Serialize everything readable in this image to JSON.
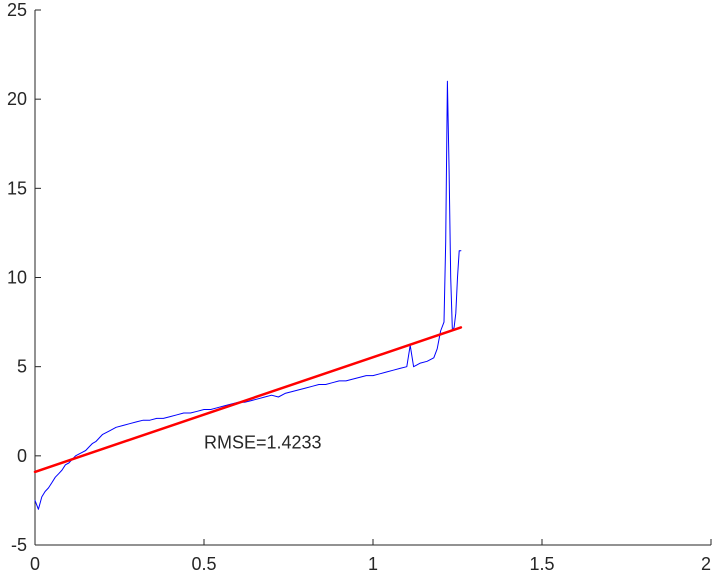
{
  "chart_data": {
    "type": "line",
    "title": "",
    "xlabel": "",
    "ylabel": "",
    "xlim": [
      0,
      2
    ],
    "ylim": [
      -5,
      25
    ],
    "grid": false,
    "xticks": [
      0,
      0.5,
      1,
      1.5,
      2
    ],
    "xtick_labels": [
      "0",
      "0.5",
      "1",
      "1.5",
      "2"
    ],
    "yticks": [
      -5,
      0,
      5,
      10,
      15,
      20,
      25
    ],
    "ytick_labels": [
      "-5",
      "0",
      "5",
      "10",
      "15",
      "20",
      "25"
    ],
    "series": [
      {
        "style": "thin-line",
        "color": "#0000ff",
        "x": [
          0,
          0.01,
          0.02,
          0.03,
          0.04,
          0.05,
          0.06,
          0.07,
          0.08,
          0.09,
          0.1,
          0.11,
          0.12,
          0.13,
          0.14,
          0.15,
          0.16,
          0.17,
          0.18,
          0.19,
          0.2,
          0.22,
          0.24,
          0.26,
          0.28,
          0.3,
          0.32,
          0.34,
          0.36,
          0.38,
          0.4,
          0.42,
          0.44,
          0.46,
          0.48,
          0.5,
          0.52,
          0.54,
          0.56,
          0.58,
          0.6,
          0.62,
          0.64,
          0.66,
          0.68,
          0.7,
          0.72,
          0.74,
          0.76,
          0.78,
          0.8,
          0.82,
          0.84,
          0.86,
          0.88,
          0.9,
          0.92,
          0.94,
          0.96,
          0.98,
          1.0,
          1.02,
          1.04,
          1.06,
          1.08,
          1.1,
          1.11,
          1.12,
          1.13,
          1.14,
          1.16,
          1.18,
          1.19,
          1.2,
          1.21,
          1.215,
          1.22,
          1.225,
          1.23,
          1.235,
          1.24,
          1.245,
          1.25,
          1.255,
          1.26
        ],
        "y": [
          -2.5,
          -3.0,
          -2.3,
          -2.0,
          -1.8,
          -1.5,
          -1.2,
          -1.0,
          -0.8,
          -0.5,
          -0.4,
          -0.2,
          0.0,
          0.1,
          0.2,
          0.3,
          0.5,
          0.7,
          0.8,
          1.0,
          1.2,
          1.4,
          1.6,
          1.7,
          1.8,
          1.9,
          2.0,
          2.0,
          2.1,
          2.1,
          2.2,
          2.3,
          2.4,
          2.4,
          2.5,
          2.6,
          2.6,
          2.7,
          2.8,
          2.9,
          3.0,
          3.0,
          3.1,
          3.2,
          3.3,
          3.4,
          3.3,
          3.5,
          3.6,
          3.7,
          3.8,
          3.9,
          4.0,
          4.0,
          4.1,
          4.2,
          4.2,
          4.3,
          4.4,
          4.5,
          4.5,
          4.6,
          4.7,
          4.8,
          4.9,
          5.0,
          6.2,
          5.0,
          5.1,
          5.2,
          5.3,
          5.5,
          6.0,
          7.0,
          7.5,
          12.0,
          21.0,
          16.0,
          10.0,
          7.0,
          7.2,
          8.0,
          10.0,
          11.5,
          11.5
        ]
      },
      {
        "style": "thick-line",
        "color": "#ff0000",
        "x": [
          0,
          1.26
        ],
        "y": [
          -0.9,
          7.2
        ]
      }
    ],
    "annotations": [
      {
        "text": "RMSE=1.4233",
        "x": 0.5,
        "y": 0.4
      }
    ]
  }
}
